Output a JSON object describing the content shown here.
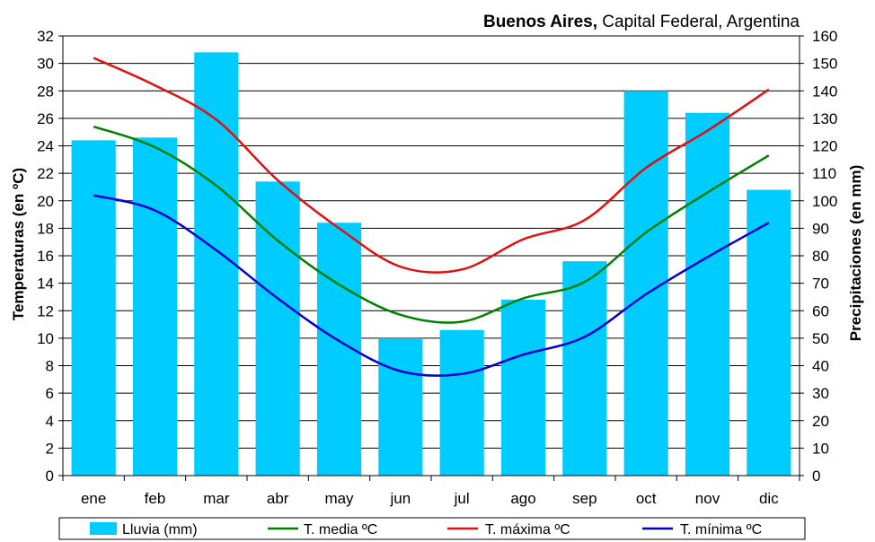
{
  "chart_data": {
    "type": "bar",
    "title": {
      "bold": "Buenos Aires,",
      "rest": " Capital Federal, Argentina"
    },
    "categories": [
      "ene",
      "feb",
      "mar",
      "abr",
      "may",
      "jun",
      "jul",
      "ago",
      "sep",
      "oct",
      "nov",
      "dic"
    ],
    "ylabel_left": "Temperaturas (en ºC)",
    "ylabel_right": "Precipitaciones (en mm)",
    "ylim_left": [
      0,
      32
    ],
    "yticks_left": [
      0,
      2,
      4,
      6,
      8,
      10,
      12,
      14,
      16,
      18,
      20,
      22,
      24,
      26,
      28,
      30,
      32
    ],
    "ylim_right": [
      0,
      160
    ],
    "yticks_right": [
      0,
      10,
      20,
      30,
      40,
      50,
      60,
      70,
      80,
      90,
      100,
      110,
      120,
      130,
      140,
      150,
      160
    ],
    "grid": true,
    "legend_position": "bottom",
    "bars": {
      "name": "Lluvia (mm)",
      "axis": "right",
      "color": "#00ccff",
      "values": [
        122,
        123,
        154,
        107,
        92,
        50,
        53,
        64,
        78,
        140,
        132,
        104
      ]
    },
    "series": [
      {
        "name": "T. media ºC",
        "axis": "left",
        "color": "#008000",
        "values": [
          25.4,
          23.9,
          21.1,
          17.1,
          13.9,
          11.7,
          11.2,
          12.9,
          14.1,
          17.7,
          20.6,
          23.3
        ]
      },
      {
        "name": "T. máxima ºC",
        "axis": "left",
        "color": "#e01010",
        "values": [
          30.4,
          28.4,
          25.9,
          21.5,
          18.0,
          15.2,
          15.0,
          17.2,
          18.6,
          22.4,
          25.1,
          28.1
        ]
      },
      {
        "name": "T. mínima ºC",
        "axis": "left",
        "color": "#0000cc",
        "values": [
          20.4,
          19.3,
          16.4,
          12.9,
          9.8,
          7.6,
          7.4,
          8.8,
          10.1,
          13.2,
          15.9,
          18.4
        ]
      }
    ]
  }
}
